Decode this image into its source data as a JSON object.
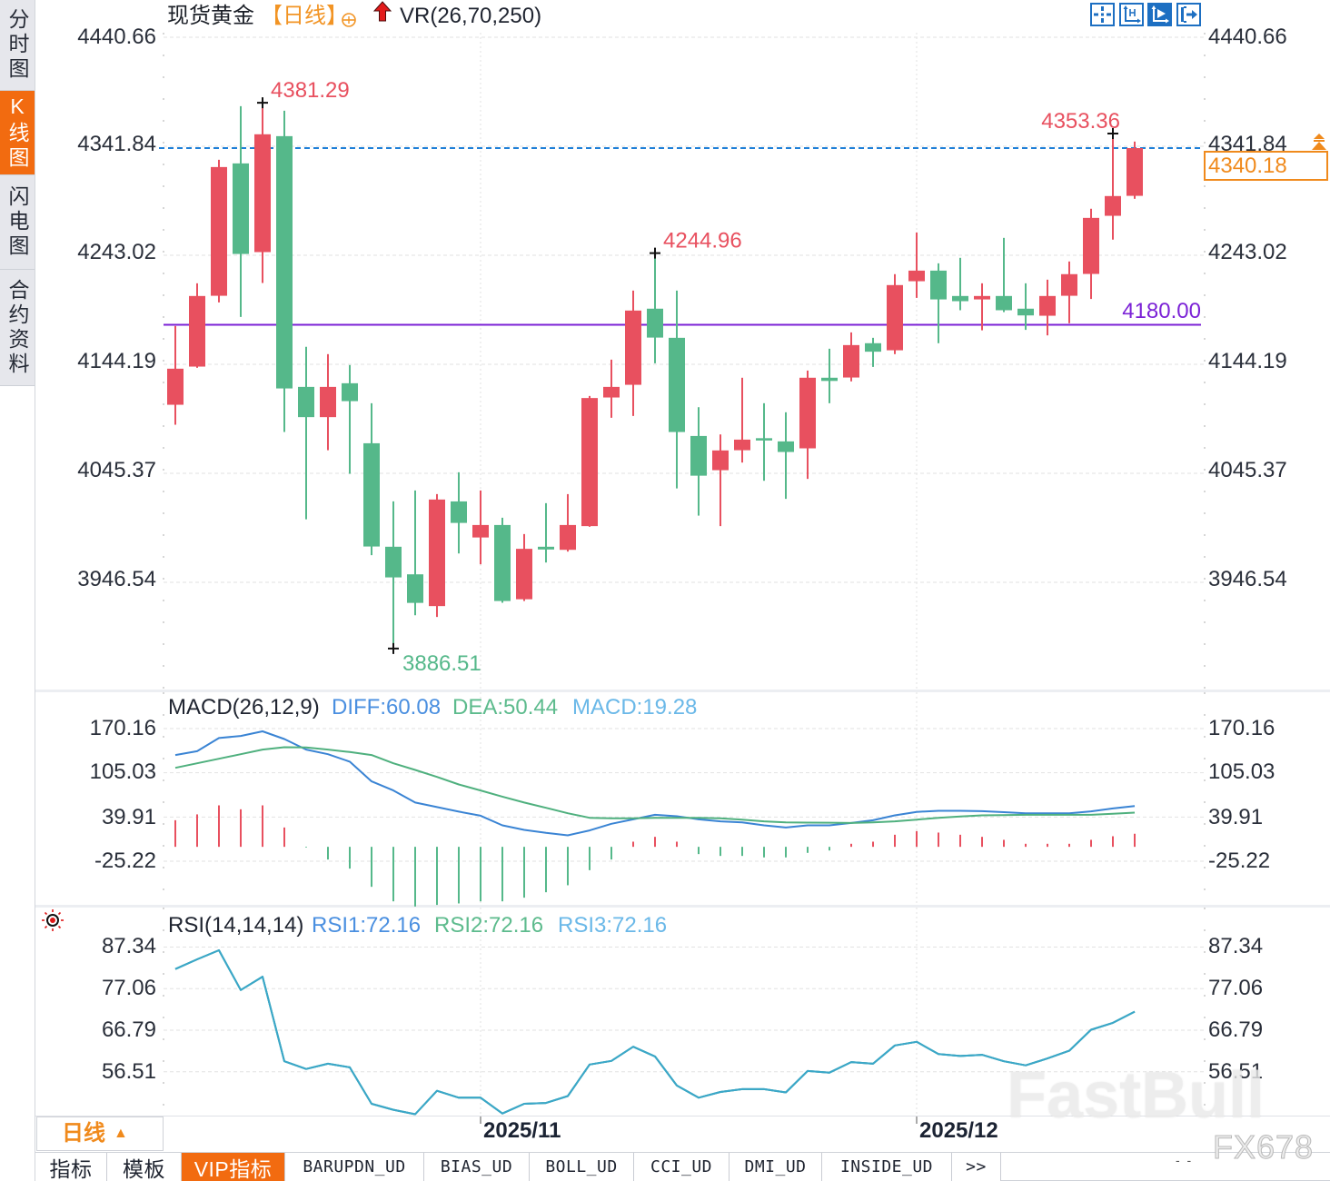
{
  "sidebar": {
    "tabs": [
      {
        "label": "分时图",
        "active": false
      },
      {
        "label": "K线图",
        "active": true
      },
      {
        "label": "闪电图",
        "active": false
      },
      {
        "label": "合约资料",
        "active": false
      }
    ]
  },
  "header": {
    "instrument_name": "现货黄金",
    "period_tag": "【日线】",
    "add_icon": "circle-plus-icon",
    "indicator_icon": "red-up-arrow-icon",
    "indicator_label": "VR(26,70,250)"
  },
  "toolbar": {
    "buttons": [
      {
        "icon": "crosshair-icon",
        "active": false
      },
      {
        "icon": "axis-scale-icon",
        "active": false
      },
      {
        "icon": "axis-play-icon",
        "active": true
      },
      {
        "icon": "jump-to-latest-icon",
        "active": false
      }
    ]
  },
  "main_panel": {
    "y_axis_labels": [
      "4440.66",
      "4341.84",
      "4243.02",
      "4144.19",
      "4045.37",
      "3946.54"
    ],
    "last_price_label": "4340.18",
    "level_line_label": "4180.00"
  },
  "macd_panel": {
    "title": "MACD(26,12,9)",
    "legend": [
      {
        "label": "DIFF:60.08"
      },
      {
        "label": "DEA:50.44"
      },
      {
        "label": "MACD:19.28"
      }
    ],
    "y_axis_labels": [
      "170.16",
      "105.03",
      "39.91",
      "-25.22"
    ]
  },
  "rsi_panel": {
    "title": "RSI(14,14,14)",
    "legend": [
      {
        "label": "RSI1:72.16"
      },
      {
        "label": "RSI2:72.16"
      },
      {
        "label": "RSI3:72.16"
      }
    ],
    "y_axis_labels": [
      "87.34",
      "77.06",
      "66.79",
      "56.51"
    ]
  },
  "x_axis": {
    "labels": [
      "2025/11",
      "2025/12"
    ]
  },
  "period_selector": {
    "label": "日线",
    "arrow": "▲"
  },
  "bottom_tabs": {
    "items": [
      {
        "label": "指标",
        "active": false
      },
      {
        "label": "模板",
        "active": false
      },
      {
        "label": "VIP指标",
        "active": true
      },
      {
        "label": "BARUPDN_UD",
        "active": false
      },
      {
        "label": "BIAS_UD",
        "active": false
      },
      {
        "label": "BOLL_UD",
        "active": false
      },
      {
        "label": "CCI_UD",
        "active": false
      },
      {
        "label": "DMI_UD",
        "active": false
      },
      {
        "label": "INSIDE_UD",
        "active": false
      },
      {
        "label": ">>",
        "active": false
      }
    ],
    "status_right": "- -"
  },
  "watermark": {
    "primary": "FastBull",
    "secondary": "FX678"
  },
  "colors": {
    "up": "#e8505f",
    "down": "#55b88a",
    "last_price_line": "#1e7fd8",
    "last_price_box": "#f08a1c",
    "level_line": "#7b22d6",
    "diff": "#3a84d4",
    "dea": "#4fb07e",
    "rsi1_line": "#4a8fe0",
    "rsi2_line": "#5dbb8d",
    "rsi3_line": "#3aa7c9",
    "accent_orange": "#f26b10",
    "toolbar_blue": "#1d6fc2"
  },
  "chart_data": [
    {
      "type": "candlestick",
      "title": "现货黄金【日线】",
      "y_ticks": [
        4440.66,
        4341.84,
        4243.02,
        4144.19,
        4045.37,
        3946.54
      ],
      "ylim": [
        3946.54,
        4440.66
      ],
      "x_ticks": [
        {
          "label": "2025/11",
          "index": 14
        },
        {
          "label": "2025/12",
          "index": 34
        }
      ],
      "ohlc_format": [
        "open",
        "high",
        "low",
        "close"
      ],
      "ohlc": [
        [
          4107.5,
          4178.9,
          4089.4,
          4140.2
        ],
        [
          4142.1,
          4217.6,
          4141.0,
          4206.1
        ],
        [
          4206.3,
          4329.6,
          4200.3,
          4323.0
        ],
        [
          4326.3,
          4378.2,
          4187.1,
          4244.2
        ],
        [
          4245.9,
          4381.29,
          4217.9,
          4352.7
        ],
        [
          4351.0,
          4374.1,
          4082.8,
          4122.3
        ],
        [
          4123.7,
          4160.0,
          4003.7,
          4096.3
        ],
        [
          4096.3,
          4153.4,
          4066.3,
          4123.7
        ],
        [
          4127.0,
          4143.5,
          4044.9,
          4110.8
        ],
        [
          4072.6,
          4108.9,
          3971.1,
          3979.0
        ],
        [
          3978.8,
          4019.9,
          3886.51,
          3951.0
        ],
        [
          3953.8,
          4029.8,
          3916.7,
          3927.9
        ],
        [
          3925.0,
          4026.5,
          3915.1,
          4021.6
        ],
        [
          4019.9,
          4046.3,
          3972.7,
          4000.4
        ],
        [
          3987.2,
          4029.8,
          3962.9,
          3998.5
        ],
        [
          3998.5,
          4005.1,
          3928.0,
          3929.6
        ],
        [
          3931.2,
          3990.3,
          3929.6,
          3976.9
        ],
        [
          3978.8,
          4018.3,
          3964.5,
          3976.3
        ],
        [
          3976.0,
          4026.5,
          3974.4,
          3998.5
        ],
        [
          3997.5,
          4115.5,
          3996.9,
          4113.6
        ],
        [
          4114.1,
          4148.4,
          4095.7,
          4123.7
        ],
        [
          4125.6,
          4211.0,
          4097.4,
          4192.9
        ],
        [
          4194.6,
          4244.96,
          4145.1,
          4168.4
        ],
        [
          4168.2,
          4211.0,
          4031.7,
          4082.8
        ],
        [
          4079.2,
          4105.3,
          4007.0,
          4043.2
        ],
        [
          4048.2,
          4080.6,
          3997.5,
          4066.1
        ],
        [
          4066.3,
          4132.0,
          4055.1,
          4075.9
        ],
        [
          4077.2,
          4108.9,
          4038.6,
          4075.1
        ],
        [
          4074.3,
          4100.7,
          4022.2,
          4064.7
        ],
        [
          4068.0,
          4138.5,
          4040.3,
          4132.0
        ],
        [
          4132.0,
          4158.3,
          4108.9,
          4129.1
        ],
        [
          4132.2,
          4173.1,
          4128.7,
          4161.6
        ],
        [
          4163.3,
          4168.2,
          4141.8,
          4155.6
        ],
        [
          4156.9,
          4225.9,
          4153.4,
          4216.0
        ],
        [
          4219.5,
          4263.7,
          4204.4,
          4229.1
        ],
        [
          4229.1,
          4235.7,
          4163.3,
          4203.0
        ],
        [
          4206.1,
          4240.7,
          4193.2,
          4201.4
        ],
        [
          4203.0,
          4217.6,
          4175.0,
          4206.1
        ],
        [
          4206.1,
          4258.8,
          4191.5,
          4193.2
        ],
        [
          4194.6,
          4217.6,
          4175.4,
          4188.5
        ],
        [
          4188.2,
          4220.9,
          4170.4,
          4206.1
        ],
        [
          4206.3,
          4237.4,
          4181.4,
          4225.9
        ],
        [
          4226.1,
          4285.2,
          4203.4,
          4276.9
        ],
        [
          4278.8,
          4353.36,
          4257.2,
          4296.7
        ],
        [
          4296.9,
          4346.1,
          4294.2,
          4340.18
        ]
      ],
      "annotations": [
        {
          "text": "4381.29",
          "index": 4,
          "value": 4381.29,
          "type": "high"
        },
        {
          "text": "3886.51",
          "index": 10,
          "value": 3886.51,
          "type": "low"
        },
        {
          "text": "4244.96",
          "index": 22,
          "value": 4244.96,
          "type": "high"
        },
        {
          "text": "4353.36",
          "index": 43,
          "value": 4353.36,
          "type": "high"
        }
      ],
      "horizontal_lines": [
        {
          "value": 4340.18,
          "label": "4340.18",
          "kind": "last-price",
          "style": "dashed"
        },
        {
          "value": 4180.0,
          "label": "4180.00",
          "kind": "price-level",
          "style": "solid"
        }
      ],
      "last_price": 4340.18
    },
    {
      "type": "macd",
      "title": "MACD(26,12,9)",
      "y_ticks": [
        170.16,
        105.03,
        39.91,
        -25.22
      ],
      "series": [
        {
          "name": "DIFF",
          "type": "line",
          "values": [
            135.2,
            140.9,
            160.2,
            163.3,
            170.16,
            158.8,
            143.2,
            136.5,
            125.4,
            96.4,
            83.0,
            65.2,
            58.5,
            51.8,
            45.9,
            31.7,
            25.0,
            20.5,
            17.0,
            24.1,
            33.9,
            40.5,
            47.2,
            45.1,
            40.5,
            37.5,
            36.1,
            31.7,
            28.5,
            31.7,
            31.7,
            35.2,
            39.2,
            46.4,
            51.5,
            53.0,
            53.0,
            52.5,
            51.0,
            49.5,
            49.5,
            49.5,
            52.2,
            56.6,
            60.08
          ]
        },
        {
          "name": "DEA",
          "type": "line",
          "values": [
            116.4,
            123.1,
            129.8,
            136.5,
            143.2,
            146.8,
            146.3,
            143.2,
            139.6,
            135.2,
            123.1,
            113.3,
            103.0,
            91.9,
            83.0,
            74.0,
            65.2,
            57.5,
            49.5,
            42.8,
            41.9,
            41.9,
            42.8,
            42.8,
            42.8,
            41.9,
            40.1,
            37.5,
            36.1,
            35.7,
            35.5,
            35.2,
            36.1,
            37.5,
            40.1,
            42.8,
            44.8,
            46.4,
            46.8,
            47.2,
            47.2,
            47.2,
            47.2,
            48.8,
            50.44
          ]
        },
        {
          "name": "MACD",
          "type": "bar",
          "values": [
            39.2,
            47.8,
            61.1,
            55.3,
            61.1,
            28.5,
            -1.0,
            -18.7,
            -32.1,
            -58.9,
            -80.3,
            -87.9,
            -85.6,
            -83.4,
            -80.3,
            -80.3,
            -74.9,
            -66.9,
            -56.6,
            -34.4,
            -18.7,
            7.6,
            14.7,
            7.6,
            -10.7,
            -13.4,
            -13.4,
            -15.6,
            -15.6,
            -8.9,
            -5.4,
            4.5,
            7.6,
            17.8,
            23.2,
            21.0,
            17.8,
            14.7,
            10.3,
            4.5,
            4.5,
            4.5,
            10.3,
            15.6,
            19.28
          ]
        }
      ],
      "latest": {
        "DIFF": 60.08,
        "DEA": 50.44,
        "MACD": 19.28
      }
    },
    {
      "type": "line",
      "title": "RSI(14,14,14)",
      "y_ticks": [
        87.34,
        77.06,
        66.79,
        56.51
      ],
      "series": [
        {
          "name": "RSI1",
          "values": [
            82.7,
            85.1,
            87.34,
            77.5,
            80.8,
            59.9,
            58.0,
            59.3,
            58.4,
            49.4,
            47.9,
            46.8,
            52.6,
            50.9,
            50.9,
            47.0,
            49.4,
            49.6,
            51.3,
            59.1,
            60.0,
            63.5,
            61.1,
            53.9,
            50.9,
            52.3,
            53.0,
            53.0,
            52.2,
            57.5,
            57.1,
            59.7,
            59.3,
            63.8,
            64.7,
            61.7,
            61.2,
            61.5,
            59.9,
            58.9,
            60.6,
            62.5,
            67.7,
            69.4,
            72.16
          ]
        },
        {
          "name": "RSI2",
          "values": [
            82.7,
            85.1,
            87.34,
            77.5,
            80.8,
            59.9,
            58.0,
            59.3,
            58.4,
            49.4,
            47.9,
            46.8,
            52.6,
            50.9,
            50.9,
            47.0,
            49.4,
            49.6,
            51.3,
            59.1,
            60.0,
            63.5,
            61.1,
            53.9,
            50.9,
            52.3,
            53.0,
            53.0,
            52.2,
            57.5,
            57.1,
            59.7,
            59.3,
            63.8,
            64.7,
            61.7,
            61.2,
            61.5,
            59.9,
            58.9,
            60.6,
            62.5,
            67.7,
            69.4,
            72.16
          ]
        },
        {
          "name": "RSI3",
          "values": [
            82.7,
            85.1,
            87.34,
            77.5,
            80.8,
            59.9,
            58.0,
            59.3,
            58.4,
            49.4,
            47.9,
            46.8,
            52.6,
            50.9,
            50.9,
            47.0,
            49.4,
            49.6,
            51.3,
            59.1,
            60.0,
            63.5,
            61.1,
            53.9,
            50.9,
            52.3,
            53.0,
            53.0,
            52.2,
            57.5,
            57.1,
            59.7,
            59.3,
            63.8,
            64.7,
            61.7,
            61.2,
            61.5,
            59.9,
            58.9,
            60.6,
            62.5,
            67.7,
            69.4,
            72.16
          ]
        }
      ],
      "latest": {
        "RSI1": 72.16,
        "RSI2": 72.16,
        "RSI3": 72.16
      }
    }
  ]
}
